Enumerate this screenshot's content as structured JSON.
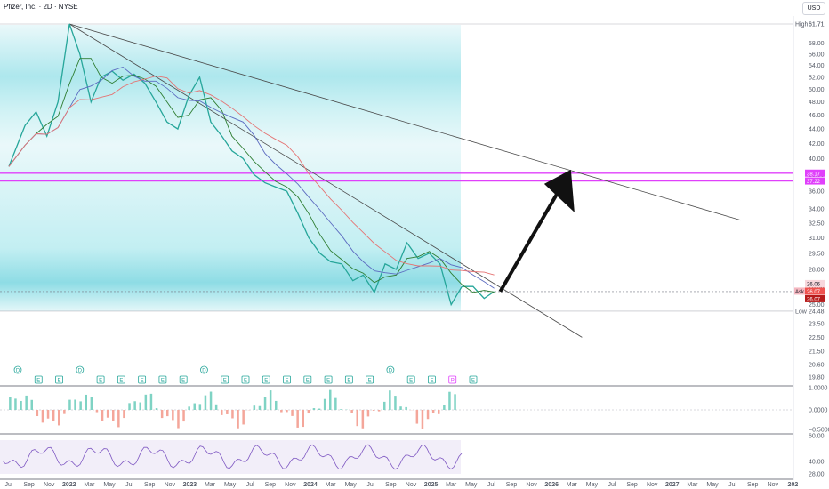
{
  "header": {
    "title": "Pfizer, Inc. · 2D · NYSE",
    "currency": "USD"
  },
  "chart_data": {
    "type": "line",
    "price_axis": [
      "61.71",
      "58.00",
      "56.00",
      "54.00",
      "52.00",
      "50.00",
      "48.00",
      "46.00",
      "44.00",
      "42.00",
      "40.00",
      "38.00",
      "36.00",
      "34.00",
      "32.50",
      "31.00",
      "29.50",
      "28.00",
      "26.50",
      "25.00",
      "23.50",
      "22.50",
      "21.50",
      "20.60",
      "19.80"
    ],
    "x_ticks": [
      "Jul",
      "Sep",
      "Nov",
      "2022",
      "Mar",
      "May",
      "Jul",
      "Sep",
      "Nov",
      "2023",
      "Mar",
      "May",
      "Jul",
      "Sep",
      "Nov",
      "2024",
      "Mar",
      "May",
      "Jul",
      "Sep",
      "Nov",
      "2025",
      "Mar",
      "May",
      "Jul",
      "Sep",
      "Nov",
      "2026",
      "Mar",
      "May",
      "Jul",
      "Sep",
      "Nov",
      "2027",
      "Mar",
      "May",
      "Jul",
      "Sep",
      "Nov",
      "202"
    ],
    "high": {
      "label": "High",
      "value": "61.71"
    },
    "low": {
      "label": "Low",
      "value": "24.48"
    },
    "resistance_1": "38.17",
    "resistance_2": "37.22",
    "ask": {
      "label": "Ask",
      "value": "26.07"
    },
    "last": "26.07",
    "bid": "26.06",
    "price_series": [
      [
        "2021-07-01",
        39.0
      ],
      [
        "2021-08-15",
        44.5
      ],
      [
        "2021-09-15",
        46.5
      ],
      [
        "2021-10-15",
        43.0
      ],
      [
        "2021-11-15",
        48.0
      ],
      [
        "2021-12-17",
        61.71
      ],
      [
        "2022-01-15",
        56.0
      ],
      [
        "2022-02-15",
        48.0
      ],
      [
        "2022-03-15",
        52.0
      ],
      [
        "2022-04-15",
        53.0
      ],
      [
        "2022-05-15",
        51.5
      ],
      [
        "2022-06-15",
        52.5
      ],
      [
        "2022-07-15",
        51.0
      ],
      [
        "2022-08-15",
        48.0
      ],
      [
        "2022-09-15",
        45.0
      ],
      [
        "2022-10-15",
        44.0
      ],
      [
        "2022-11-15",
        49.0
      ],
      [
        "2022-12-15",
        52.0
      ],
      [
        "2023-01-15",
        45.0
      ],
      [
        "2023-02-15",
        43.0
      ],
      [
        "2023-03-15",
        41.0
      ],
      [
        "2023-04-15",
        40.0
      ],
      [
        "2023-05-15",
        38.0
      ],
      [
        "2023-06-15",
        37.0
      ],
      [
        "2023-07-15",
        36.5
      ],
      [
        "2023-08-15",
        36.0
      ],
      [
        "2023-09-15",
        33.5
      ],
      [
        "2023-10-15",
        31.0
      ],
      [
        "2023-11-15",
        29.5
      ],
      [
        "2023-12-15",
        28.7
      ],
      [
        "2024-01-15",
        28.5
      ],
      [
        "2024-02-15",
        27.0
      ],
      [
        "2024-03-15",
        27.5
      ],
      [
        "2024-04-15",
        26.0
      ],
      [
        "2024-05-15",
        28.5
      ],
      [
        "2024-06-15",
        28.0
      ],
      [
        "2024-07-15",
        30.5
      ],
      [
        "2024-08-15",
        29.0
      ],
      [
        "2024-09-15",
        29.5
      ],
      [
        "2024-10-15",
        28.5
      ],
      [
        "2024-11-15",
        25.0
      ],
      [
        "2024-12-15",
        26.5
      ],
      [
        "2025-01-15",
        26.5
      ],
      [
        "2025-02-15",
        25.5
      ],
      [
        "2025-03-15",
        26.07
      ]
    ],
    "indicator_1": {
      "levels": [
        "1.0000",
        "0.0000",
        "−0.5000"
      ]
    },
    "indicator_2": {
      "levels": [
        "60.00",
        "40.00",
        "28.00"
      ]
    },
    "event_markers": [
      "D",
      "E",
      "E",
      "D",
      "E",
      "E",
      "E",
      "E",
      "E",
      "D",
      "E",
      "E",
      "E",
      "E",
      "E",
      "E",
      "E",
      "E",
      "D",
      "E",
      "E",
      "P",
      "E"
    ]
  }
}
